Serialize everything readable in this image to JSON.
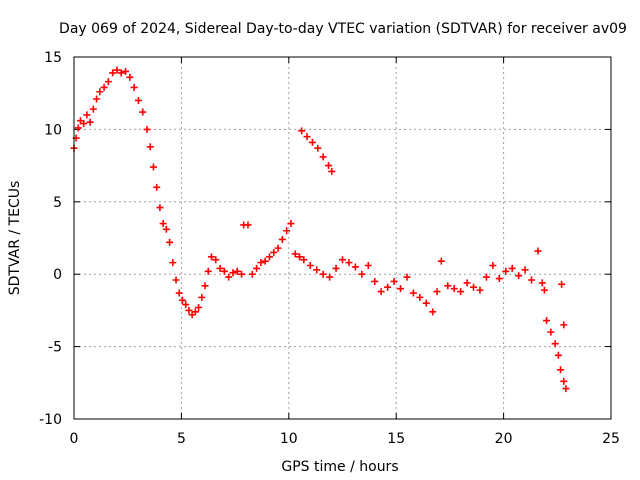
{
  "chart_data": {
    "type": "scatter",
    "title": "Day 069 of 2024, Sidereal Day-to-day VTEC variation (SDTVAR) for receiver av09",
    "xlabel": "GPS time / hours",
    "ylabel": "SDTVAR / TECUs",
    "xlim": [
      0,
      25
    ],
    "ylim": [
      -10,
      15
    ],
    "xticks": [
      0,
      5,
      10,
      15,
      20,
      25
    ],
    "yticks": [
      -10,
      -5,
      0,
      5,
      10,
      15
    ],
    "grid": true,
    "marker": "+",
    "color": "#ff0000",
    "series": [
      {
        "name": "SDTVAR",
        "points": [
          [
            0.0,
            8.7
          ],
          [
            0.1,
            9.4
          ],
          [
            0.2,
            10.1
          ],
          [
            0.3,
            10.6
          ],
          [
            0.45,
            10.4
          ],
          [
            0.6,
            11.0
          ],
          [
            0.75,
            10.5
          ],
          [
            0.9,
            11.4
          ],
          [
            1.05,
            12.1
          ],
          [
            1.2,
            12.6
          ],
          [
            1.4,
            12.9
          ],
          [
            1.6,
            13.3
          ],
          [
            1.8,
            13.9
          ],
          [
            2.0,
            14.1
          ],
          [
            2.2,
            13.9
          ],
          [
            2.4,
            14.0
          ],
          [
            2.6,
            13.6
          ],
          [
            2.8,
            12.9
          ],
          [
            3.0,
            12.0
          ],
          [
            3.2,
            11.2
          ],
          [
            3.4,
            10.0
          ],
          [
            3.55,
            8.8
          ],
          [
            3.7,
            7.4
          ],
          [
            3.85,
            6.0
          ],
          [
            4.0,
            4.6
          ],
          [
            4.15,
            3.5
          ],
          [
            4.3,
            3.1
          ],
          [
            4.45,
            2.2
          ],
          [
            4.6,
            0.8
          ],
          [
            4.75,
            -0.4
          ],
          [
            4.9,
            -1.3
          ],
          [
            5.05,
            -1.8
          ],
          [
            5.2,
            -2.1
          ],
          [
            5.35,
            -2.5
          ],
          [
            5.5,
            -2.8
          ],
          [
            5.65,
            -2.6
          ],
          [
            5.8,
            -2.3
          ],
          [
            5.95,
            -1.6
          ],
          [
            6.1,
            -0.8
          ],
          [
            6.25,
            0.2
          ],
          [
            6.4,
            1.2
          ],
          [
            6.6,
            1.0
          ],
          [
            6.8,
            0.4
          ],
          [
            7.0,
            0.2
          ],
          [
            7.2,
            -0.2
          ],
          [
            7.4,
            0.1
          ],
          [
            7.6,
            0.2
          ],
          [
            7.8,
            0.0
          ],
          [
            7.9,
            3.4
          ],
          [
            8.1,
            3.4
          ],
          [
            8.3,
            0.0
          ],
          [
            8.5,
            0.4
          ],
          [
            8.7,
            0.8
          ],
          [
            8.9,
            0.9
          ],
          [
            9.1,
            1.2
          ],
          [
            9.3,
            1.5
          ],
          [
            9.5,
            1.8
          ],
          [
            9.7,
            2.4
          ],
          [
            9.9,
            3.0
          ],
          [
            10.1,
            3.5
          ],
          [
            10.3,
            1.4
          ],
          [
            10.5,
            1.2
          ],
          [
            10.7,
            1.0
          ],
          [
            10.6,
            9.9
          ],
          [
            10.85,
            9.5
          ],
          [
            11.1,
            9.1
          ],
          [
            11.35,
            8.7
          ],
          [
            11.6,
            8.1
          ],
          [
            11.85,
            7.5
          ],
          [
            12.0,
            7.1
          ],
          [
            11.0,
            0.6
          ],
          [
            11.3,
            0.3
          ],
          [
            11.6,
            0.0
          ],
          [
            11.9,
            -0.2
          ],
          [
            12.2,
            0.4
          ],
          [
            12.5,
            1.0
          ],
          [
            12.8,
            0.8
          ],
          [
            13.1,
            0.5
          ],
          [
            13.4,
            0.0
          ],
          [
            13.7,
            0.6
          ],
          [
            14.0,
            -0.5
          ],
          [
            14.3,
            -1.2
          ],
          [
            14.6,
            -0.9
          ],
          [
            14.9,
            -0.5
          ],
          [
            15.2,
            -1.0
          ],
          [
            15.5,
            -0.2
          ],
          [
            15.8,
            -1.3
          ],
          [
            16.1,
            -1.6
          ],
          [
            16.4,
            -2.0
          ],
          [
            16.7,
            -2.6
          ],
          [
            16.9,
            -1.2
          ],
          [
            17.1,
            0.9
          ],
          [
            17.4,
            -0.8
          ],
          [
            17.7,
            -1.0
          ],
          [
            18.0,
            -1.2
          ],
          [
            18.3,
            -0.6
          ],
          [
            18.6,
            -0.9
          ],
          [
            18.9,
            -1.1
          ],
          [
            19.2,
            -0.2
          ],
          [
            19.5,
            0.6
          ],
          [
            19.8,
            -0.3
          ],
          [
            20.1,
            0.2
          ],
          [
            20.4,
            0.4
          ],
          [
            20.7,
            -0.1
          ],
          [
            21.0,
            0.3
          ],
          [
            21.3,
            -0.4
          ],
          [
            21.6,
            1.6
          ],
          [
            21.8,
            -0.6
          ],
          [
            21.9,
            -1.1
          ],
          [
            22.0,
            -3.2
          ],
          [
            22.2,
            -4.0
          ],
          [
            22.4,
            -4.8
          ],
          [
            22.55,
            -5.6
          ],
          [
            22.7,
            -0.7
          ],
          [
            22.8,
            -3.5
          ],
          [
            22.65,
            -6.6
          ],
          [
            22.8,
            -7.4
          ],
          [
            22.9,
            -7.9
          ]
        ]
      }
    ]
  }
}
